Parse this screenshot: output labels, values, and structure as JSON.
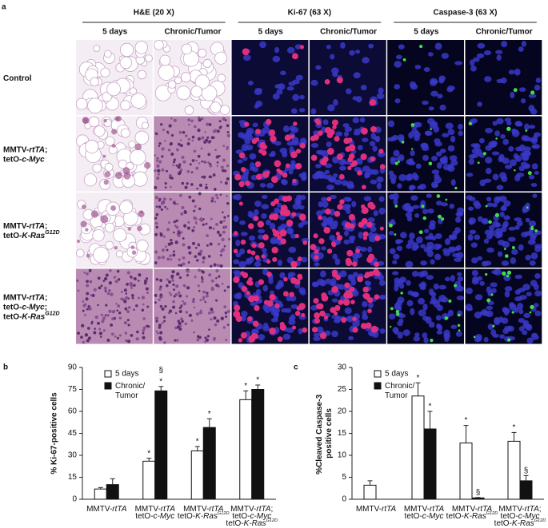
{
  "panel_a": {
    "label": "a",
    "groups": [
      {
        "title": "H&E (20 X)",
        "columns": [
          "5 days",
          "Chronic/Tumor"
        ]
      },
      {
        "title": "Ki-67 (63 X)",
        "columns": [
          "5 days",
          "Chronic/Tumor"
        ]
      },
      {
        "title": "Caspase-3 (63 X)",
        "columns": [
          "5 days",
          "Chronic/Tumor"
        ]
      }
    ],
    "rows": [
      [
        [
          {
            "text": "Control"
          }
        ]
      ],
      [
        [
          {
            "text": "MMTV-"
          },
          {
            "text": "rtTA",
            "style": "italic"
          },
          {
            "text": ";"
          }
        ],
        [
          {
            "text": "tetO-"
          },
          {
            "text": "c-Myc",
            "style": "italic"
          }
        ]
      ],
      [
        [
          {
            "text": "MMTV-"
          },
          {
            "text": "rtTA",
            "style": "italic"
          },
          {
            "text": ";"
          }
        ],
        [
          {
            "text": "tetO-"
          },
          {
            "text": "K-Ras",
            "style": "italic"
          },
          {
            "text": "G12D",
            "style": "sup"
          }
        ]
      ],
      [
        [
          {
            "text": "MMTV-"
          },
          {
            "text": "rtTA",
            "style": "italic"
          },
          {
            "text": ";"
          }
        ],
        [
          {
            "text": "tetO-"
          },
          {
            "text": "c-Myc",
            "style": "italic"
          },
          {
            "text": ";"
          }
        ],
        [
          {
            "text": "tetO-"
          },
          {
            "text": "K-Ras",
            "style": "italic"
          },
          {
            "text": "G12D",
            "style": "sup"
          }
        ]
      ]
    ]
  },
  "chart_data": [
    {
      "type": "bar",
      "panel_label": "b",
      "y_label": "% Ki-67-positive cells",
      "categories": [
        [
          [
            {
              "text": "MMTV-"
            },
            {
              "text": "rtTA",
              "style": "italic"
            }
          ]
        ],
        [
          [
            {
              "text": "MMTV-"
            },
            {
              "text": "rtTA",
              "style": "italic"
            }
          ],
          [
            {
              "text": "tetO-"
            },
            {
              "text": "c-Myc",
              "style": "italic"
            }
          ]
        ],
        [
          [
            {
              "text": "MMTV-"
            },
            {
              "text": "rtTA",
              "style": "italic"
            }
          ],
          [
            {
              "text": "tetO-"
            },
            {
              "text": "K-Ras",
              "style": "italic"
            },
            {
              "text": "G12D",
              "style": "sup"
            }
          ]
        ],
        [
          [
            {
              "text": "MMTV-"
            },
            {
              "text": "rtTA",
              "style": "italic"
            },
            {
              "text": ";"
            }
          ],
          [
            {
              "text": "tetO-"
            },
            {
              "text": "c-Myc",
              "style": "italic"
            }
          ],
          [
            {
              "text": "tetO-"
            },
            {
              "text": "K-Ras",
              "style": "italic"
            },
            {
              "text": "G12D",
              "style": "sup"
            }
          ]
        ]
      ],
      "series": [
        {
          "name": "5 days",
          "color": "#ffffff",
          "values": [
            7,
            26,
            33,
            68
          ],
          "errors": [
            1,
            2,
            3,
            6
          ],
          "markers": [
            null,
            [
              "*"
            ],
            [
              "*"
            ],
            [
              "*"
            ]
          ]
        },
        {
          "name": "Chronic/Tumor",
          "color": "#111111",
          "values": [
            10,
            74,
            49,
            75
          ],
          "errors": [
            4,
            3,
            6,
            3
          ],
          "markers": [
            null,
            [
              "*",
              "§"
            ],
            [
              "*"
            ],
            [
              "*"
            ]
          ]
        }
      ],
      "ylim": [
        0,
        90
      ],
      "yticks": [
        0,
        15,
        30,
        45,
        60,
        75,
        90
      ]
    },
    {
      "type": "bar",
      "panel_label": "c",
      "y_label": "%Cleaved Caspase-3 positive cells",
      "categories": [
        [
          [
            {
              "text": "MMTV-"
            },
            {
              "text": "rtTA",
              "style": "italic"
            }
          ]
        ],
        [
          [
            {
              "text": "MMTV-"
            },
            {
              "text": "rtTA",
              "style": "italic"
            }
          ],
          [
            {
              "text": "tetO-"
            },
            {
              "text": "c-Myc",
              "style": "italic"
            }
          ]
        ],
        [
          [
            {
              "text": "MMTV-"
            },
            {
              "text": "rtTA",
              "style": "italic"
            }
          ],
          [
            {
              "text": "tetO-"
            },
            {
              "text": "K-Ras",
              "style": "italic"
            },
            {
              "text": "G12D",
              "style": "sup"
            }
          ]
        ],
        [
          [
            {
              "text": "MMTV-"
            },
            {
              "text": "rtTA",
              "style": "italic"
            },
            {
              "text": ";"
            }
          ],
          [
            {
              "text": "tetO-"
            },
            {
              "text": "c-Myc",
              "style": "italic"
            }
          ],
          [
            {
              "text": "tetO-"
            },
            {
              "text": "K-Ras",
              "style": "italic"
            },
            {
              "text": "G12D",
              "style": "sup"
            }
          ]
        ]
      ],
      "series": [
        {
          "name": "5 days",
          "color": "#ffffff",
          "values": [
            3.2,
            23.5,
            12.8,
            13.2
          ],
          "errors": [
            1,
            3,
            4,
            2
          ],
          "markers": [
            null,
            [
              "*"
            ],
            [
              "*"
            ],
            [
              "*"
            ]
          ]
        },
        {
          "name": "Chronic/Tumor",
          "color": "#111111",
          "values": [
            null,
            16,
            0.3,
            4.2
          ],
          "errors": [
            null,
            4,
            0.1,
            1.2
          ],
          "markers": [
            null,
            [
              "*"
            ],
            [
              "§"
            ],
            [
              "§"
            ]
          ]
        }
      ],
      "ylim": [
        0,
        30
      ],
      "yticks": [
        0,
        5,
        10,
        15,
        20,
        25,
        30
      ]
    }
  ]
}
